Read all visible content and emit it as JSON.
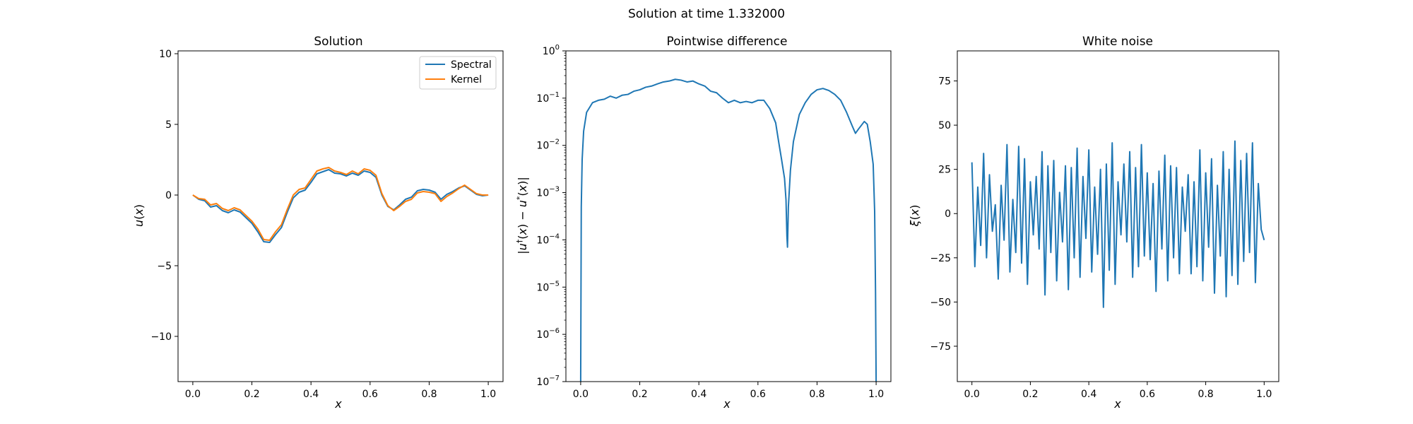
{
  "figure": {
    "suptitle": "Solution at time 1.332000"
  },
  "colors": {
    "spectral": "#1f77b4",
    "kernel": "#ff7f0e",
    "difference": "#1f77b4",
    "noise": "#1f77b4",
    "axes": "#000000",
    "background": "#ffffff"
  },
  "chart_data": [
    {
      "type": "line",
      "title": "Solution",
      "xlabel": "x",
      "ylabel": "u(x)",
      "xlim": [
        -0.05,
        1.05
      ],
      "ylim": [
        -13.2,
        10.2
      ],
      "xticks": [
        0.0,
        0.2,
        0.4,
        0.6,
        0.8,
        1.0
      ],
      "xtick_labels": [
        "0.0",
        "0.2",
        "0.4",
        "0.6",
        "0.8",
        "1.0"
      ],
      "yticks": [
        10,
        5,
        0,
        -5,
        -10
      ],
      "ytick_labels": [
        "10",
        "5",
        "0",
        "−5",
        "−10"
      ],
      "legend": {
        "position": "upper right",
        "entries": [
          "Spectral",
          "Kernel"
        ]
      },
      "grid": false,
      "series": [
        {
          "name": "Spectral",
          "x": [
            0.0,
            0.02,
            0.04,
            0.06,
            0.08,
            0.1,
            0.12,
            0.14,
            0.16,
            0.18,
            0.2,
            0.22,
            0.24,
            0.26,
            0.28,
            0.3,
            0.32,
            0.34,
            0.36,
            0.38,
            0.4,
            0.42,
            0.44,
            0.46,
            0.48,
            0.5,
            0.52,
            0.54,
            0.56,
            0.58,
            0.6,
            0.62,
            0.64,
            0.66,
            0.68,
            0.7,
            0.72,
            0.74,
            0.76,
            0.78,
            0.8,
            0.82,
            0.84,
            0.86,
            0.88,
            0.9,
            0.92,
            0.94,
            0.96,
            0.98,
            1.0
          ],
          "values": [
            0.0,
            -0.3,
            -0.4,
            -0.85,
            -0.75,
            -1.1,
            -1.25,
            -1.05,
            -1.2,
            -1.6,
            -2.0,
            -2.6,
            -3.3,
            -3.35,
            -2.8,
            -2.3,
            -1.2,
            -0.2,
            0.2,
            0.35,
            0.9,
            1.5,
            1.65,
            1.8,
            1.55,
            1.5,
            1.35,
            1.55,
            1.4,
            1.7,
            1.6,
            1.25,
            0.0,
            -0.8,
            -1.05,
            -0.7,
            -0.3,
            -0.15,
            0.3,
            0.4,
            0.35,
            0.2,
            -0.3,
            0.05,
            0.25,
            0.5,
            0.65,
            0.35,
            0.05,
            -0.05,
            0.0
          ]
        },
        {
          "name": "Kernel",
          "x": [
            0.0,
            0.02,
            0.04,
            0.06,
            0.08,
            0.1,
            0.12,
            0.14,
            0.16,
            0.18,
            0.2,
            0.22,
            0.24,
            0.26,
            0.28,
            0.3,
            0.32,
            0.34,
            0.36,
            0.38,
            0.4,
            0.42,
            0.44,
            0.46,
            0.48,
            0.5,
            0.52,
            0.54,
            0.56,
            0.58,
            0.6,
            0.62,
            0.64,
            0.66,
            0.68,
            0.7,
            0.72,
            0.74,
            0.76,
            0.78,
            0.8,
            0.82,
            0.84,
            0.86,
            0.88,
            0.9,
            0.92,
            0.94,
            0.96,
            0.98,
            1.0
          ],
          "values": [
            0.0,
            -0.25,
            -0.3,
            -0.7,
            -0.6,
            -0.95,
            -1.1,
            -0.9,
            -1.05,
            -1.45,
            -1.85,
            -2.4,
            -3.15,
            -3.2,
            -2.6,
            -2.1,
            -1.0,
            0.0,
            0.4,
            0.5,
            1.1,
            1.7,
            1.85,
            1.95,
            1.7,
            1.6,
            1.45,
            1.7,
            1.5,
            1.85,
            1.75,
            1.4,
            0.1,
            -0.75,
            -1.1,
            -0.8,
            -0.45,
            -0.3,
            0.15,
            0.25,
            0.2,
            0.1,
            -0.45,
            -0.1,
            0.15,
            0.45,
            0.7,
            0.4,
            0.1,
            0.0,
            0.0
          ]
        }
      ]
    },
    {
      "type": "line",
      "title": "Pointwise difference",
      "xlabel": "x",
      "ylabel": "|u†(x) − u*(x)|",
      "yscale": "log",
      "xlim": [
        -0.05,
        1.05
      ],
      "ylim": [
        1e-07,
        1
      ],
      "xticks": [
        0.0,
        0.2,
        0.4,
        0.6,
        0.8,
        1.0
      ],
      "xtick_labels": [
        "0.0",
        "0.2",
        "0.4",
        "0.6",
        "0.8",
        "1.0"
      ],
      "yticks": [
        1e-07,
        1e-06,
        1e-05,
        0.0001,
        0.001,
        0.01,
        0.1,
        1
      ],
      "ytick_labels": [
        [
          "10",
          "−7"
        ],
        [
          "10",
          "−6"
        ],
        [
          "10",
          "−5"
        ],
        [
          "10",
          "−4"
        ],
        [
          "10",
          "−3"
        ],
        [
          "10",
          "−2"
        ],
        [
          "10",
          "−1"
        ],
        [
          "10",
          "0"
        ]
      ],
      "grid": false,
      "series": [
        {
          "x": [
            0.0,
            0.002,
            0.005,
            0.01,
            0.02,
            0.04,
            0.06,
            0.08,
            0.1,
            0.12,
            0.14,
            0.16,
            0.18,
            0.2,
            0.22,
            0.24,
            0.26,
            0.28,
            0.3,
            0.32,
            0.34,
            0.36,
            0.38,
            0.4,
            0.42,
            0.44,
            0.46,
            0.48,
            0.5,
            0.52,
            0.54,
            0.56,
            0.58,
            0.6,
            0.62,
            0.64,
            0.66,
            0.67,
            0.68,
            0.69,
            0.695,
            0.698,
            0.7,
            0.703,
            0.71,
            0.72,
            0.74,
            0.76,
            0.78,
            0.8,
            0.82,
            0.84,
            0.86,
            0.88,
            0.9,
            0.92,
            0.93,
            0.94,
            0.96,
            0.97,
            0.98,
            0.99,
            0.995,
            0.998,
            1.0
          ],
          "values": [
            1e-07,
            0.0005,
            0.005,
            0.02,
            0.05,
            0.08,
            0.09,
            0.095,
            0.11,
            0.1,
            0.115,
            0.12,
            0.14,
            0.15,
            0.17,
            0.18,
            0.2,
            0.22,
            0.23,
            0.25,
            0.24,
            0.22,
            0.23,
            0.2,
            0.18,
            0.14,
            0.13,
            0.1,
            0.08,
            0.09,
            0.08,
            0.085,
            0.08,
            0.09,
            0.09,
            0.06,
            0.03,
            0.012,
            0.005,
            0.002,
            0.0007,
            0.00012,
            7e-05,
            0.0005,
            0.003,
            0.012,
            0.045,
            0.08,
            0.12,
            0.15,
            0.16,
            0.145,
            0.12,
            0.09,
            0.05,
            0.025,
            0.018,
            0.022,
            0.032,
            0.028,
            0.012,
            0.004,
            0.0004,
            8e-06,
            1e-07
          ]
        }
      ]
    },
    {
      "type": "line",
      "title": "White noise",
      "xlabel": "x",
      "ylabel": "ξ(x)",
      "xlim": [
        -0.05,
        1.05
      ],
      "ylim": [
        -95,
        92
      ],
      "xticks": [
        0.0,
        0.2,
        0.4,
        0.6,
        0.8,
        1.0
      ],
      "xtick_labels": [
        "0.0",
        "0.2",
        "0.4",
        "0.6",
        "0.8",
        "1.0"
      ],
      "yticks": [
        75,
        50,
        25,
        0,
        -25,
        -50,
        -75
      ],
      "ytick_labels": [
        "75",
        "50",
        "25",
        "0",
        "−25",
        "−50",
        "−75"
      ],
      "grid": false,
      "series": [
        {
          "x": [
            0.0,
            0.01,
            0.02,
            0.03,
            0.04,
            0.05,
            0.06,
            0.07,
            0.08,
            0.09,
            0.1,
            0.11,
            0.12,
            0.13,
            0.14,
            0.15,
            0.16,
            0.17,
            0.18,
            0.19,
            0.2,
            0.21,
            0.22,
            0.23,
            0.24,
            0.25,
            0.26,
            0.27,
            0.28,
            0.29,
            0.3,
            0.31,
            0.32,
            0.33,
            0.34,
            0.35,
            0.36,
            0.37,
            0.38,
            0.39,
            0.4,
            0.41,
            0.42,
            0.43,
            0.44,
            0.45,
            0.46,
            0.47,
            0.48,
            0.49,
            0.5,
            0.51,
            0.52,
            0.53,
            0.54,
            0.55,
            0.56,
            0.57,
            0.58,
            0.59,
            0.6,
            0.61,
            0.62,
            0.63,
            0.64,
            0.65,
            0.66,
            0.67,
            0.68,
            0.69,
            0.7,
            0.71,
            0.72,
            0.73,
            0.74,
            0.75,
            0.76,
            0.77,
            0.78,
            0.79,
            0.8,
            0.81,
            0.82,
            0.83,
            0.84,
            0.85,
            0.86,
            0.87,
            0.88,
            0.89,
            0.9,
            0.91,
            0.92,
            0.93,
            0.94,
            0.95,
            0.96,
            0.97,
            0.98,
            0.99,
            1.0
          ],
          "values": [
            29,
            -30,
            15,
            -18,
            34,
            -25,
            22,
            -10,
            5,
            -37,
            16,
            -15,
            39,
            -33,
            8,
            -22,
            38,
            -28,
            31,
            -40,
            18,
            -12,
            21,
            -20,
            35,
            -46,
            27,
            -22,
            30,
            -38,
            12,
            -16,
            27,
            -43,
            26,
            -25,
            37,
            -36,
            21,
            -14,
            36,
            -33,
            15,
            -23,
            25,
            -53,
            28,
            -32,
            40,
            -40,
            18,
            -12,
            28,
            -16,
            35,
            -36,
            26,
            -30,
            39,
            -24,
            23,
            -26,
            17,
            -44,
            24,
            -20,
            33,
            -38,
            27,
            -25,
            26,
            -34,
            15,
            -10,
            22,
            -34,
            18,
            -30,
            36,
            -38,
            23,
            -19,
            31,
            -45,
            16,
            -24,
            35,
            -47,
            25,
            -35,
            41,
            -40,
            30,
            -27,
            34,
            -22,
            40,
            -39,
            17,
            -9,
            -15
          ]
        }
      ]
    }
  ]
}
